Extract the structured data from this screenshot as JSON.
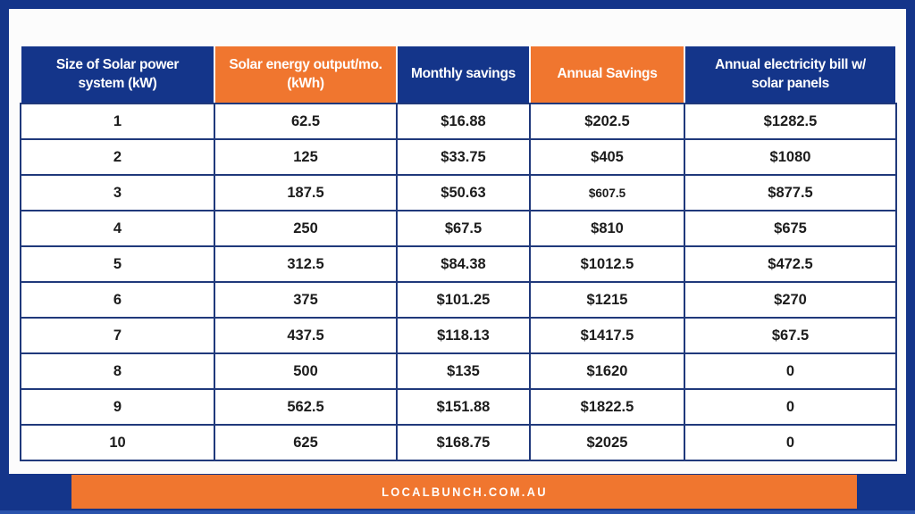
{
  "banner": {
    "text": "LOCALBUNCH.COM.AU"
  },
  "colors": {
    "navy": "#14358a",
    "orange": "#f0762f",
    "gridline": "#20397b",
    "bottom_edge": "#2a53ac",
    "cell_text": "#1c1c1c",
    "header_text": "#ffffff"
  },
  "table": {
    "headers": [
      {
        "label": "Size of Solar power\nsystem (kW)",
        "color": "blue"
      },
      {
        "label": "Solar energy output/mo.\n(kWh)",
        "color": "orange"
      },
      {
        "label": "Monthly savings",
        "color": "blue"
      },
      {
        "label": "Annual Savings",
        "color": "orange"
      },
      {
        "label": "Annual electricity bill w/\nsolar panels",
        "color": "blue"
      }
    ],
    "rows": [
      [
        "1",
        "62.5",
        "$16.88",
        "$202.5",
        "$1282.5"
      ],
      [
        "2",
        "125",
        "$33.75",
        "$405",
        "$1080"
      ],
      [
        "3",
        "187.5",
        "$50.63",
        "$607.5",
        "$877.5"
      ],
      [
        "4",
        "250",
        "$67.5",
        "$810",
        "$675"
      ],
      [
        "5",
        "312.5",
        "$84.38",
        "$1012.5",
        "$472.5"
      ],
      [
        "6",
        "375",
        "$101.25",
        "$1215",
        "$270"
      ],
      [
        "7",
        "437.5",
        "$118.13",
        "$1417.5",
        "$67.5"
      ],
      [
        "8",
        "500",
        "$135",
        "$1620",
        "0"
      ],
      [
        "9",
        "562.5",
        "$151.88",
        "$1822.5",
        "0"
      ],
      [
        "10",
        "625",
        "$168.75",
        "$2025",
        "0"
      ]
    ],
    "small_text_cells": [
      {
        "row": 2,
        "col": 3
      }
    ]
  },
  "chart_data": {
    "type": "table",
    "title": "Solar power system savings table",
    "columns": [
      "Size of Solar power system (kW)",
      "Solar energy output/mo. (kWh)",
      "Monthly savings",
      "Annual Savings",
      "Annual electricity bill w/ solar panels"
    ],
    "rows": [
      [
        1,
        62.5,
        "$16.88",
        "$202.5",
        "$1282.5"
      ],
      [
        2,
        125,
        "$33.75",
        "$405",
        "$1080"
      ],
      [
        3,
        187.5,
        "$50.63",
        "$607.5",
        "$877.5"
      ],
      [
        4,
        250,
        "$67.5",
        "$810",
        "$675"
      ],
      [
        5,
        312.5,
        "$84.38",
        "$1012.5",
        "$472.5"
      ],
      [
        6,
        375,
        "$101.25",
        "$1215",
        "$270"
      ],
      [
        7,
        437.5,
        "$118.13",
        "$1417.5",
        "$67.5"
      ],
      [
        8,
        500,
        "$135",
        "$1620",
        "0"
      ],
      [
        9,
        562.5,
        "$151.88",
        "$1822.5",
        "0"
      ],
      [
        10,
        625,
        "$168.75",
        "$2025",
        "0"
      ]
    ],
    "footer": "LOCALBUNCH.COM.AU"
  }
}
